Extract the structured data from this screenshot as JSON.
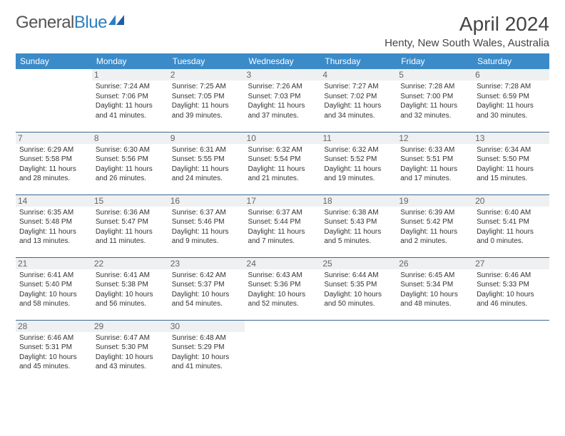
{
  "brand": {
    "part1": "General",
    "part2": "Blue"
  },
  "title": "April 2024",
  "location": "Henty, New South Wales, Australia",
  "colors": {
    "header_bg": "#3b8bc9",
    "header_text": "#ffffff",
    "row_border": "#3b6a95",
    "daynum_bg": "#eef0f1",
    "daynum_text": "#666666",
    "body_text": "#333333",
    "brand_accent": "#2f7fbf"
  },
  "typography": {
    "month_title_size_pt": 21,
    "location_size_pt": 11,
    "weekday_size_pt": 9,
    "daynum_size_pt": 9,
    "cell_text_size_pt": 7.5
  },
  "weekdays": [
    "Sunday",
    "Monday",
    "Tuesday",
    "Wednesday",
    "Thursday",
    "Friday",
    "Saturday"
  ],
  "weeks": [
    [
      {
        "day": "",
        "sunrise": "",
        "sunset": "",
        "daylight": ""
      },
      {
        "day": "1",
        "sunrise": "7:24 AM",
        "sunset": "7:06 PM",
        "daylight": "11 hours and 41 minutes."
      },
      {
        "day": "2",
        "sunrise": "7:25 AM",
        "sunset": "7:05 PM",
        "daylight": "11 hours and 39 minutes."
      },
      {
        "day": "3",
        "sunrise": "7:26 AM",
        "sunset": "7:03 PM",
        "daylight": "11 hours and 37 minutes."
      },
      {
        "day": "4",
        "sunrise": "7:27 AM",
        "sunset": "7:02 PM",
        "daylight": "11 hours and 34 minutes."
      },
      {
        "day": "5",
        "sunrise": "7:28 AM",
        "sunset": "7:00 PM",
        "daylight": "11 hours and 32 minutes."
      },
      {
        "day": "6",
        "sunrise": "7:28 AM",
        "sunset": "6:59 PM",
        "daylight": "11 hours and 30 minutes."
      }
    ],
    [
      {
        "day": "7",
        "sunrise": "6:29 AM",
        "sunset": "5:58 PM",
        "daylight": "11 hours and 28 minutes."
      },
      {
        "day": "8",
        "sunrise": "6:30 AM",
        "sunset": "5:56 PM",
        "daylight": "11 hours and 26 minutes."
      },
      {
        "day": "9",
        "sunrise": "6:31 AM",
        "sunset": "5:55 PM",
        "daylight": "11 hours and 24 minutes."
      },
      {
        "day": "10",
        "sunrise": "6:32 AM",
        "sunset": "5:54 PM",
        "daylight": "11 hours and 21 minutes."
      },
      {
        "day": "11",
        "sunrise": "6:32 AM",
        "sunset": "5:52 PM",
        "daylight": "11 hours and 19 minutes."
      },
      {
        "day": "12",
        "sunrise": "6:33 AM",
        "sunset": "5:51 PM",
        "daylight": "11 hours and 17 minutes."
      },
      {
        "day": "13",
        "sunrise": "6:34 AM",
        "sunset": "5:50 PM",
        "daylight": "11 hours and 15 minutes."
      }
    ],
    [
      {
        "day": "14",
        "sunrise": "6:35 AM",
        "sunset": "5:48 PM",
        "daylight": "11 hours and 13 minutes."
      },
      {
        "day": "15",
        "sunrise": "6:36 AM",
        "sunset": "5:47 PM",
        "daylight": "11 hours and 11 minutes."
      },
      {
        "day": "16",
        "sunrise": "6:37 AM",
        "sunset": "5:46 PM",
        "daylight": "11 hours and 9 minutes."
      },
      {
        "day": "17",
        "sunrise": "6:37 AM",
        "sunset": "5:44 PM",
        "daylight": "11 hours and 7 minutes."
      },
      {
        "day": "18",
        "sunrise": "6:38 AM",
        "sunset": "5:43 PM",
        "daylight": "11 hours and 5 minutes."
      },
      {
        "day": "19",
        "sunrise": "6:39 AM",
        "sunset": "5:42 PM",
        "daylight": "11 hours and 2 minutes."
      },
      {
        "day": "20",
        "sunrise": "6:40 AM",
        "sunset": "5:41 PM",
        "daylight": "11 hours and 0 minutes."
      }
    ],
    [
      {
        "day": "21",
        "sunrise": "6:41 AM",
        "sunset": "5:40 PM",
        "daylight": "10 hours and 58 minutes."
      },
      {
        "day": "22",
        "sunrise": "6:41 AM",
        "sunset": "5:38 PM",
        "daylight": "10 hours and 56 minutes."
      },
      {
        "day": "23",
        "sunrise": "6:42 AM",
        "sunset": "5:37 PM",
        "daylight": "10 hours and 54 minutes."
      },
      {
        "day": "24",
        "sunrise": "6:43 AM",
        "sunset": "5:36 PM",
        "daylight": "10 hours and 52 minutes."
      },
      {
        "day": "25",
        "sunrise": "6:44 AM",
        "sunset": "5:35 PM",
        "daylight": "10 hours and 50 minutes."
      },
      {
        "day": "26",
        "sunrise": "6:45 AM",
        "sunset": "5:34 PM",
        "daylight": "10 hours and 48 minutes."
      },
      {
        "day": "27",
        "sunrise": "6:46 AM",
        "sunset": "5:33 PM",
        "daylight": "10 hours and 46 minutes."
      }
    ],
    [
      {
        "day": "28",
        "sunrise": "6:46 AM",
        "sunset": "5:31 PM",
        "daylight": "10 hours and 45 minutes."
      },
      {
        "day": "29",
        "sunrise": "6:47 AM",
        "sunset": "5:30 PM",
        "daylight": "10 hours and 43 minutes."
      },
      {
        "day": "30",
        "sunrise": "6:48 AM",
        "sunset": "5:29 PM",
        "daylight": "10 hours and 41 minutes."
      },
      {
        "day": "",
        "sunrise": "",
        "sunset": "",
        "daylight": ""
      },
      {
        "day": "",
        "sunrise": "",
        "sunset": "",
        "daylight": ""
      },
      {
        "day": "",
        "sunrise": "",
        "sunset": "",
        "daylight": ""
      },
      {
        "day": "",
        "sunrise": "",
        "sunset": "",
        "daylight": ""
      }
    ]
  ],
  "labels": {
    "sunrise": "Sunrise:",
    "sunset": "Sunset:",
    "daylight": "Daylight:"
  }
}
